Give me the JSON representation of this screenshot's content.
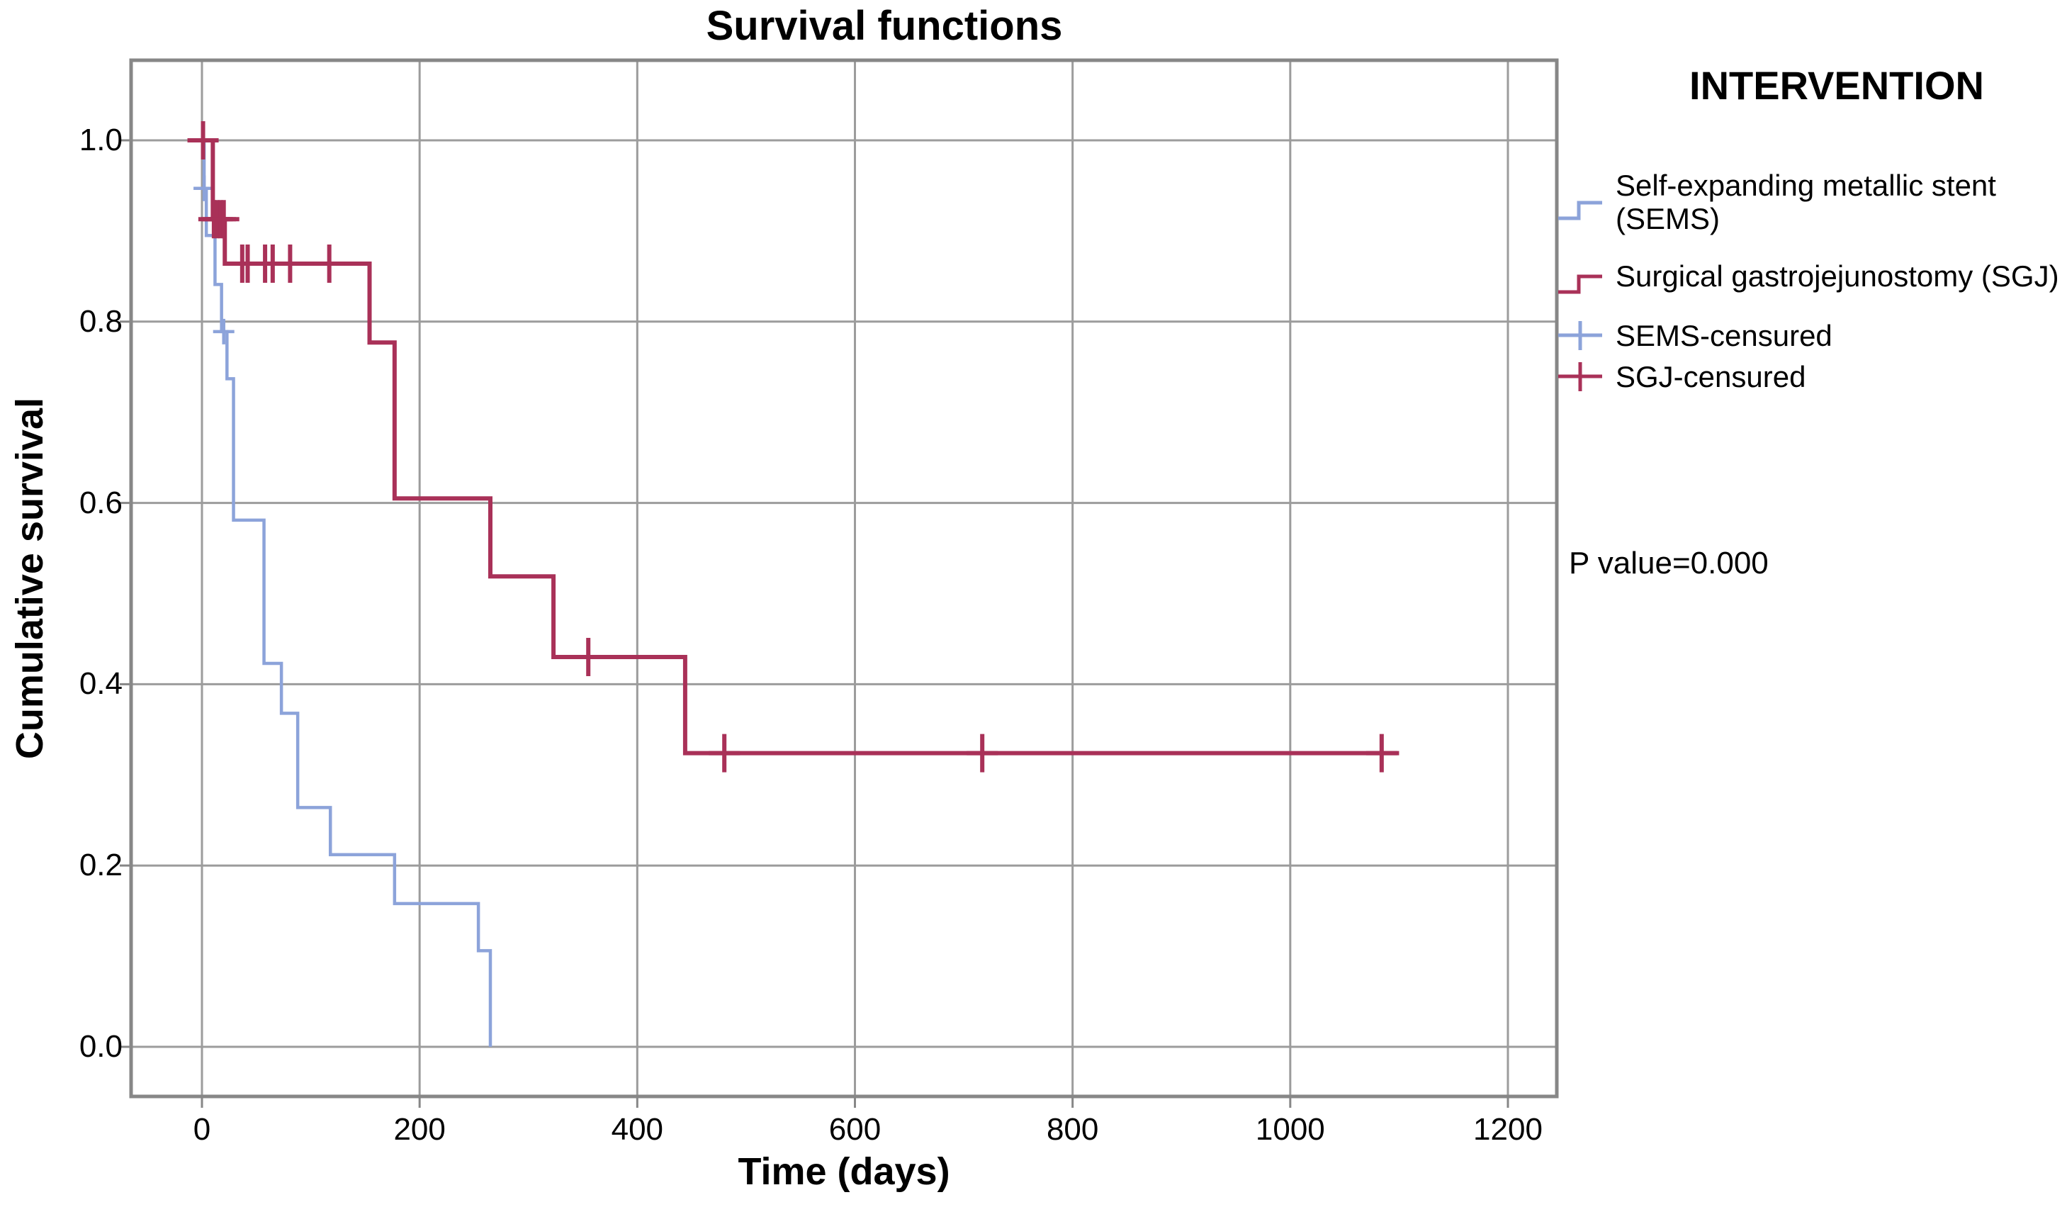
{
  "page": {
    "background": "#ffffff"
  },
  "title": "Survival functions",
  "annotation": {
    "p_value_label": "P value=0.000"
  },
  "colors": {
    "sems": "#8ca3da",
    "sgj": "#a93158",
    "grid": "#9c9c9c",
    "frame": "#878787",
    "text": "#000000"
  },
  "legend": {
    "title": "INTERVENTION",
    "items": [
      {
        "label": "Self-expanding metallic stent (SEMS)",
        "key": "step",
        "color_key": "sems"
      },
      {
        "label": "Surgical gastrojejunostomy (SGJ)",
        "key": "step",
        "color_key": "sgj"
      },
      {
        "label": "SEMS-censured",
        "key": "plus",
        "color_key": "sems"
      },
      {
        "label": "SGJ-censured",
        "key": "plus",
        "color_key": "sgj"
      }
    ]
  },
  "chart_data": {
    "type": "line",
    "subtype": "kaplan-meier-step",
    "title": "Survival functions",
    "xlabel": "Time (days)",
    "ylabel": "Cumulative survival",
    "xlim": [
      -65,
      1240
    ],
    "ylim": [
      -0.055,
      1.09
    ],
    "x_ticks": [
      0,
      200,
      400,
      600,
      800,
      1000,
      1200
    ],
    "y_ticks": [
      0.0,
      0.2,
      0.4,
      0.6,
      0.8,
      1.0
    ],
    "grid": true,
    "legend_position": "right",
    "series": [
      {
        "name": "Self-expanding metallic stent (SEMS)",
        "color_key": "sems",
        "steps": [
          [
            0,
            1.0
          ],
          [
            2,
            0.947
          ],
          [
            4,
            0.895
          ],
          [
            12,
            0.841
          ],
          [
            18,
            0.789
          ],
          [
            23,
            0.737
          ],
          [
            29,
            0.581
          ],
          [
            57,
            0.423
          ],
          [
            73,
            0.368
          ],
          [
            88,
            0.264
          ],
          [
            118,
            0.212
          ],
          [
            177,
            0.158
          ],
          [
            254,
            0.106
          ],
          [
            265,
            0.0
          ]
        ],
        "end_time": 265,
        "censored": [
          [
            2,
            0.947
          ],
          [
            20,
            0.789
          ]
        ]
      },
      {
        "name": "Surgical gastrojejunostomy (SGJ)",
        "color_key": "sgj",
        "steps": [
          [
            0,
            1.0
          ],
          [
            10,
            0.913
          ],
          [
            21,
            0.864
          ],
          [
            154,
            0.777
          ],
          [
            177,
            0.605
          ],
          [
            265,
            0.519
          ],
          [
            323,
            0.43
          ],
          [
            444,
            0.324
          ]
        ],
        "end_time": 1100,
        "censored": [
          [
            1,
            1.0
          ],
          [
            11,
            0.913
          ],
          [
            14,
            0.913
          ],
          [
            17,
            0.913
          ],
          [
            20,
            0.913
          ],
          [
            37,
            0.864
          ],
          [
            42,
            0.864
          ],
          [
            58,
            0.864
          ],
          [
            65,
            0.864
          ],
          [
            81,
            0.864
          ],
          [
            117,
            0.864
          ],
          [
            355,
            0.43
          ],
          [
            480,
            0.324
          ],
          [
            717,
            0.324
          ],
          [
            1084,
            0.324
          ]
        ]
      }
    ]
  }
}
